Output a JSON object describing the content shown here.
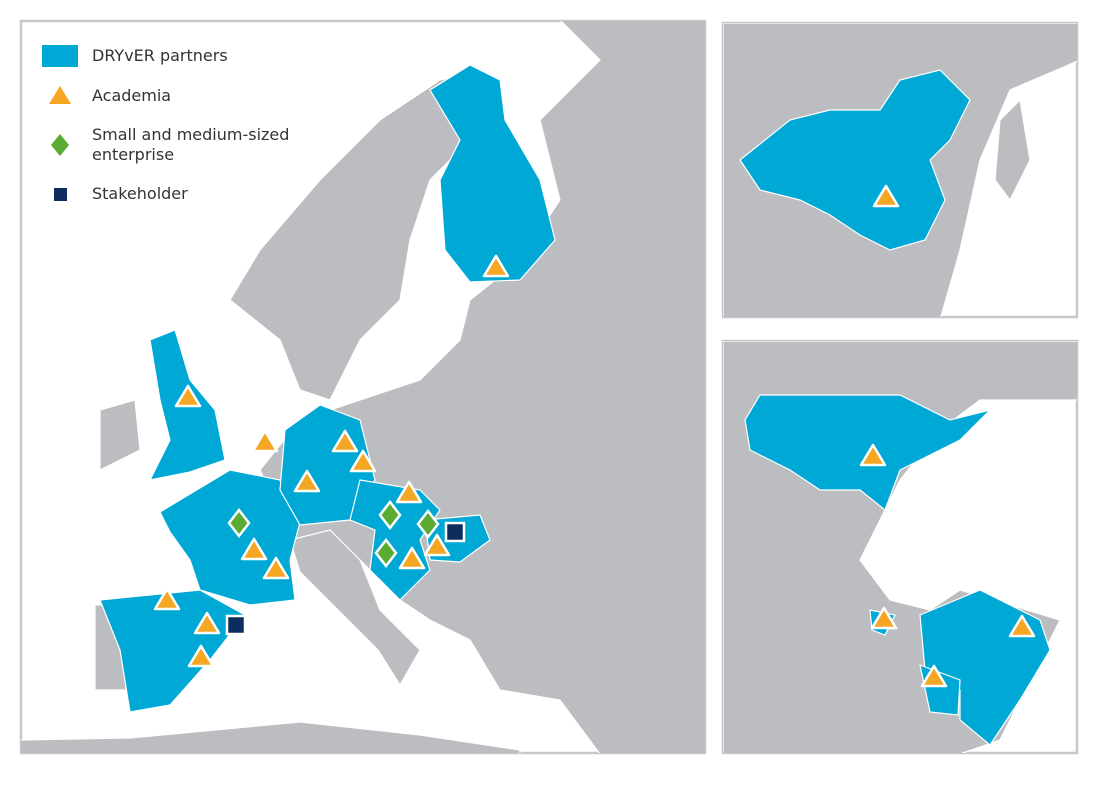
{
  "legend": [
    {
      "label": "DRYvER partners"
    },
    {
      "label": "Academia"
    },
    {
      "label": "Small and medium-sized enterprise"
    },
    {
      "label": "Stakeholder"
    }
  ]
}
